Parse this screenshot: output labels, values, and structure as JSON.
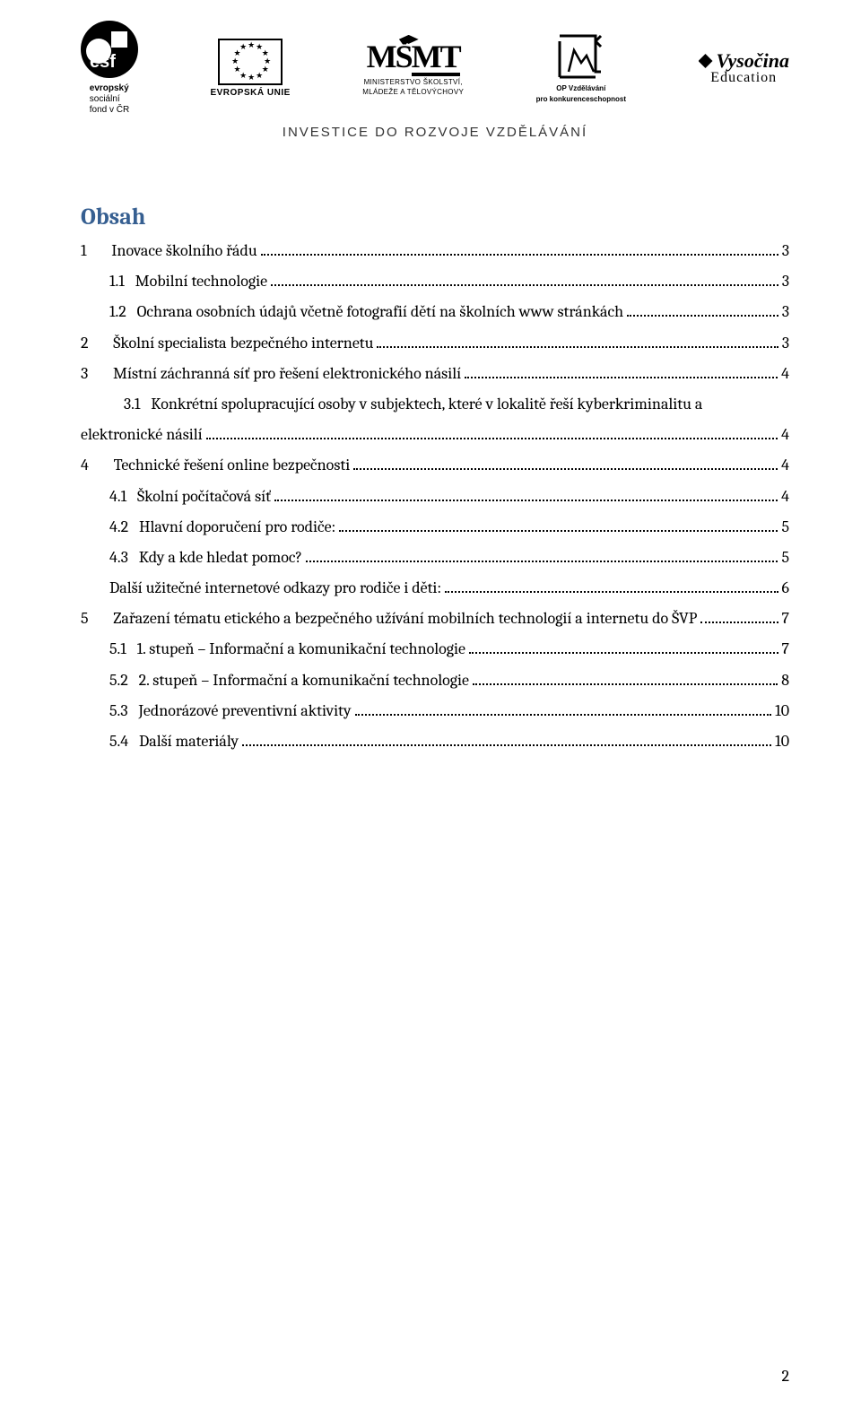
{
  "header": {
    "esf_text_html": "evropský\nsociální\nfond v ČR",
    "eu_label": "EVROPSKÁ UNIE",
    "msmt_line1": "MINISTERSTVO ŠKOLSTVÍ,",
    "msmt_line2": "MLÁDEŽE A TĚLOVÝCHOVY",
    "opvk_line1": "OP Vzdělávání",
    "opvk_line2": "pro konkurenceschopnost",
    "vysocina_top": "Vysočina",
    "vysocina_bot": "Education",
    "strapline": "INVESTICE DO ROZVOJE VZDĚLÁVÁNÍ"
  },
  "toc": {
    "heading": "Obsah",
    "heading_color": "#365f91",
    "font_family": "Cambria, Georgia, serif",
    "body_fontsize": 18,
    "entries": [
      {
        "num": "1",
        "title": "Inovace školního řádu",
        "page": "3",
        "indent": 0
      },
      {
        "num": "1.1",
        "title": "Mobilní technologie",
        "page": "3",
        "indent": 1
      },
      {
        "num": "1.2",
        "title": "Ochrana osobních údajů včetně fotografií dětí na školních www stránkách",
        "page": "3",
        "indent": 1
      },
      {
        "num": "2",
        "title": "Školní specialista bezpečného internetu",
        "page": "3",
        "indent": 0
      },
      {
        "num": "3",
        "title": "Místní záchranná síť pro řešení elektronického násilí",
        "page": "4",
        "indent": 0
      },
      {
        "num": "3.1",
        "title_line1": "Konkrétní spolupracující osoby v subjektech, které v lokalitě řeší kyberkriminalitu a",
        "title_line2": "elektronické násilí",
        "page": "4",
        "indent": 1,
        "twoline": true
      },
      {
        "num": "4",
        "title": "Technické řešení online bezpečnosti",
        "page": "4",
        "indent": 0
      },
      {
        "num": "4.1",
        "title": "Školní počítačová síť",
        "page": "4",
        "indent": 1
      },
      {
        "num": "4.2",
        "title": "Hlavní doporučení pro rodiče:",
        "page": "5",
        "indent": 1
      },
      {
        "num": "4.3",
        "title": "Kdy a kde hledat pomoc?",
        "page": "5",
        "indent": 1
      },
      {
        "num": "",
        "title": "Další užitečné internetové odkazy pro rodiče i děti:",
        "page": "6",
        "indent": 1
      },
      {
        "num": "5",
        "title": "Zařazení tématu etického a bezpečného užívání mobilních technologií a internetu do ŠVP",
        "page": "7",
        "indent": 0
      },
      {
        "num": "5.1",
        "title": "1. stupeň – Informační a komunikační technologie",
        "page": "7",
        "indent": 1
      },
      {
        "num": "5.2",
        "title": "2. stupeň – Informační a komunikační technologie",
        "page": "8",
        "indent": 1
      },
      {
        "num": "5.3",
        "title": "Jednorázové preventivní aktivity",
        "page": "10",
        "indent": 1
      },
      {
        "num": "5.4",
        "title": "Další materiály",
        "page": "10",
        "indent": 1
      }
    ]
  },
  "footer": {
    "page_number": "2"
  }
}
